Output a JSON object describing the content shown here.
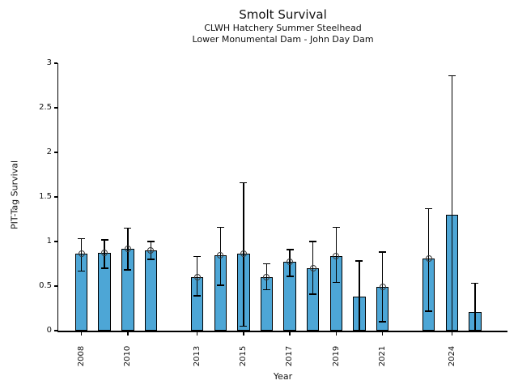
{
  "chart_data": {
    "type": "bar",
    "title": "Smolt Survival",
    "subtitle_line1": "CLWH Hatchery Summer Steelhead",
    "subtitle_line2": "Lower Monumental Dam - John Day Dam",
    "xlabel": "Year",
    "ylabel": "PIT-Tag Survival",
    "xlim": [
      2007,
      2026.4
    ],
    "ylim": [
      0,
      3
    ],
    "yticks": [
      0,
      0.5,
      1,
      1.5,
      2,
      2.5,
      3
    ],
    "ytick_labels": [
      "0",
      "0.5",
      "1",
      "1.5",
      "2",
      "2.5",
      "3"
    ],
    "xticks": [
      2008,
      2010,
      2013,
      2015,
      2017,
      2019,
      2021,
      2024
    ],
    "grid": false,
    "legend_position": "none",
    "bar_width_years": 0.54,
    "colors": {
      "bar_fill": "#4DA6D6",
      "bar_edge": "#000000",
      "error_bar": "#000000",
      "marker_edge": "#3a3a3a",
      "axis": "#000000",
      "background": "#ffffff"
    },
    "points": [
      {
        "year": 2008,
        "value": 0.86,
        "err_low": 0.67,
        "err_high": 1.03,
        "marker": true,
        "low_cap": true
      },
      {
        "year": 2009,
        "value": 0.87,
        "err_low": 0.7,
        "err_high": 1.02,
        "marker": true,
        "low_cap": true
      },
      {
        "year": 2010,
        "value": 0.92,
        "err_low": 0.68,
        "err_high": 1.15,
        "marker": true,
        "low_cap": true
      },
      {
        "year": 2011,
        "value": 0.9,
        "err_low": 0.8,
        "err_high": 1.0,
        "marker": true,
        "low_cap": true
      },
      {
        "year": 2013,
        "value": 0.6,
        "err_low": 0.39,
        "err_high": 0.83,
        "marker": true,
        "low_cap": true
      },
      {
        "year": 2014,
        "value": 0.85,
        "err_low": 0.51,
        "err_high": 1.16,
        "marker": true,
        "low_cap": true
      },
      {
        "year": 2015,
        "value": 0.86,
        "err_low": 0.05,
        "err_high": 1.66,
        "marker": true,
        "low_cap": true
      },
      {
        "year": 2016,
        "value": 0.6,
        "err_low": 0.46,
        "err_high": 0.75,
        "marker": true,
        "low_cap": true
      },
      {
        "year": 2017,
        "value": 0.77,
        "err_low": 0.61,
        "err_high": 0.91,
        "marker": true,
        "low_cap": true
      },
      {
        "year": 2018,
        "value": 0.7,
        "err_low": 0.41,
        "err_high": 1.0,
        "marker": true,
        "low_cap": true
      },
      {
        "year": 2019,
        "value": 0.84,
        "err_low": 0.54,
        "err_high": 1.16,
        "marker": true,
        "low_cap": true
      },
      {
        "year": 2020,
        "value": 0.38,
        "err_low": 0.0,
        "err_high": 0.78,
        "marker": false,
        "low_cap": false
      },
      {
        "year": 2021,
        "value": 0.49,
        "err_low": 0.1,
        "err_high": 0.88,
        "marker": true,
        "low_cap": true
      },
      {
        "year": 2023,
        "value": 0.81,
        "err_low": 0.22,
        "err_high": 1.37,
        "marker": true,
        "low_cap": true
      },
      {
        "year": 2024,
        "value": 1.3,
        "err_low": 0.0,
        "err_high": 2.86,
        "marker": false,
        "low_cap": false
      },
      {
        "year": 2025,
        "value": 0.21,
        "err_low": 0.0,
        "err_high": 0.53,
        "marker": false,
        "low_cap": false
      }
    ]
  }
}
